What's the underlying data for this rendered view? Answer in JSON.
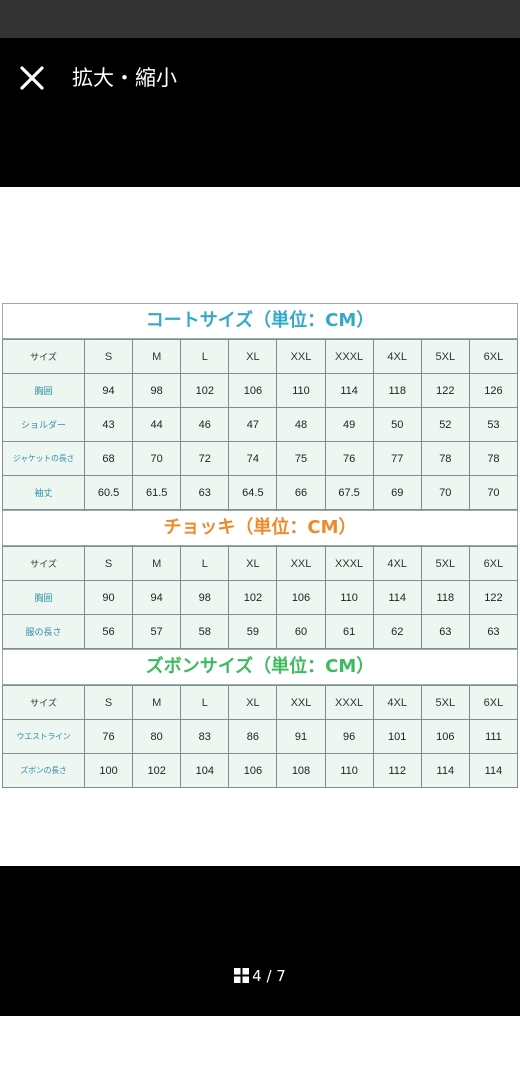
{
  "viewer": {
    "close_icon": "close-icon",
    "title": "拡大・縮小",
    "counter": {
      "current": "4",
      "total": "7",
      "text": "4 / 7"
    },
    "grid_icon": "grid-icon"
  },
  "size_chart": {
    "coat": {
      "title": "コートサイズ（単位：CM）",
      "header": [
        "サイズ",
        "S",
        "M",
        "L",
        "XL",
        "XXL",
        "XXXL",
        "4XL",
        "5XL",
        "6XL"
      ],
      "rows": [
        [
          "胸囲",
          "94",
          "98",
          "102",
          "106",
          "110",
          "114",
          "118",
          "122",
          "126"
        ],
        [
          "ショルダー",
          "43",
          "44",
          "46",
          "47",
          "48",
          "49",
          "50",
          "52",
          "53"
        ],
        [
          "ジャケットの長さ",
          "68",
          "70",
          "72",
          "74",
          "75",
          "76",
          "77",
          "78",
          "78"
        ],
        [
          "袖丈",
          "60.5",
          "61.5",
          "63",
          "64.5",
          "66",
          "67.5",
          "69",
          "70",
          "70"
        ]
      ]
    },
    "vest": {
      "title": "チョッキ（単位：CM）",
      "header": [
        "サイズ",
        "S",
        "M",
        "L",
        "XL",
        "XXL",
        "XXXL",
        "4XL",
        "5XL",
        "6XL"
      ],
      "rows": [
        [
          "胸囲",
          "90",
          "94",
          "98",
          "102",
          "106",
          "110",
          "114",
          "118",
          "122"
        ],
        [
          "服の長さ",
          "56",
          "57",
          "58",
          "59",
          "60",
          "61",
          "62",
          "63",
          "63"
        ]
      ]
    },
    "pants": {
      "title": "ズボンサイズ（単位：CM）",
      "header": [
        "サイズ",
        "S",
        "M",
        "L",
        "XL",
        "XXL",
        "XXXL",
        "4XL",
        "5XL",
        "6XL"
      ],
      "rows": [
        [
          "ウエストライン",
          "76",
          "80",
          "83",
          "86",
          "91",
          "96",
          "101",
          "106",
          "111"
        ],
        [
          "ズボンの長さ",
          "100",
          "102",
          "104",
          "106",
          "108",
          "110",
          "112",
          "114",
          "114"
        ]
      ]
    }
  }
}
